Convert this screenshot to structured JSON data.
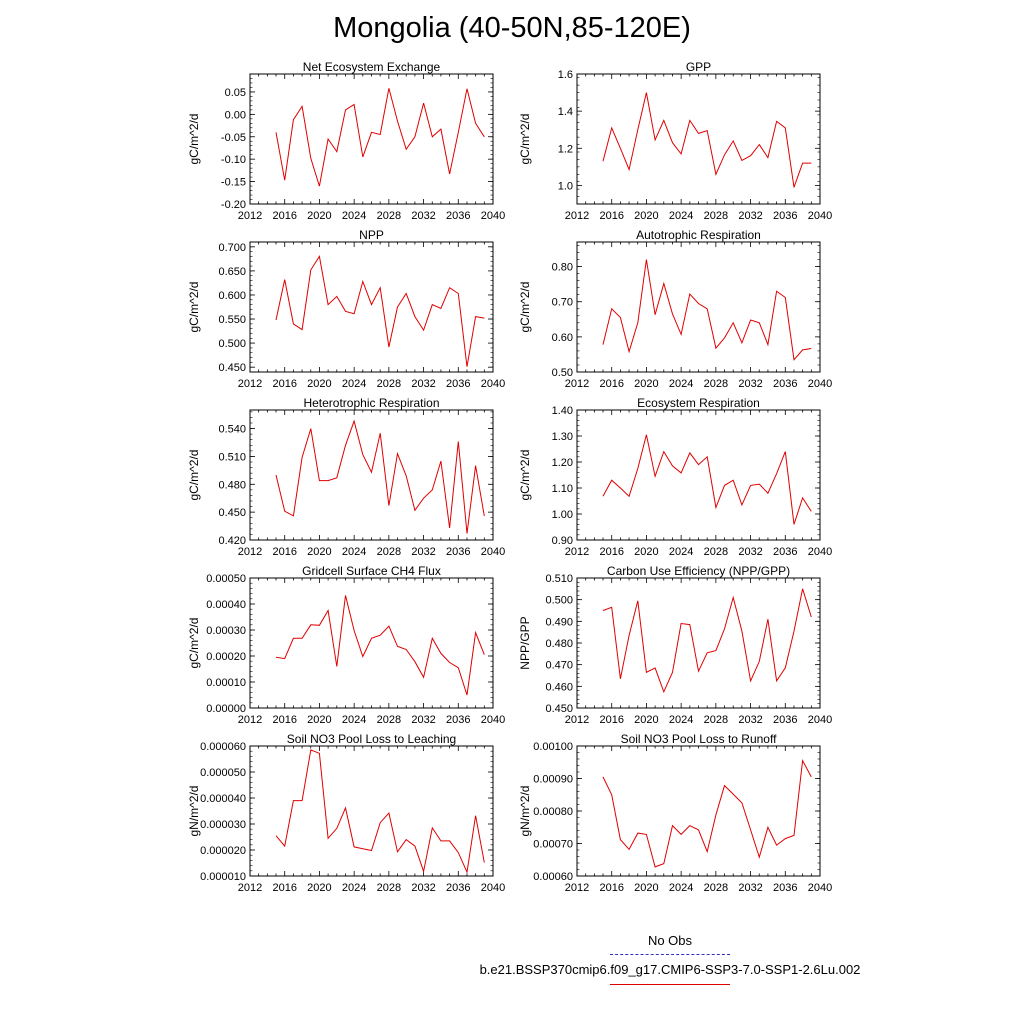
{
  "title": "Mongolia (40-50N,85-120E)",
  "legend": {
    "obs_label": "No Obs",
    "case_label": "b.e21.BSSP370cmip6.f09_g17.CMIP6-SSP3-7.0-SSP1-2.6Lu.002",
    "obs_color": "#3030c8",
    "case_color": "#e00000"
  },
  "chart_data": [
    {
      "type": "line",
      "title": "Net Ecosystem Exchange",
      "ylabel": "gC/m^2/d",
      "xlim": [
        2012,
        2040
      ],
      "xticks": [
        "2012",
        "2016",
        "2020",
        "2024",
        "2028",
        "2032",
        "2036",
        "2040"
      ],
      "ylim": [
        -0.2,
        0.09
      ],
      "yticks": [
        "0.05",
        "0.00",
        "-0.05",
        "-0.10",
        "-0.15",
        "-0.20"
      ],
      "ytick_values": [
        0.05,
        0.0,
        -0.05,
        -0.1,
        -0.15,
        -0.2
      ],
      "series": [
        {
          "x": [
            2015,
            2016,
            2017,
            2018,
            2019,
            2020,
            2021,
            2022,
            2023,
            2024,
            2025,
            2026,
            2027,
            2028,
            2029,
            2030,
            2031,
            2032,
            2033,
            2034,
            2035,
            2036,
            2037,
            2038,
            2039
          ],
          "values": [
            -0.04,
            -0.147,
            -0.012,
            0.018,
            -0.098,
            -0.16,
            -0.055,
            -0.083,
            0.01,
            0.022,
            -0.095,
            -0.04,
            -0.045,
            0.058,
            -0.015,
            -0.078,
            -0.05,
            0.025,
            -0.05,
            -0.033,
            -0.133,
            -0.04,
            0.057,
            -0.02,
            -0.05
          ]
        }
      ]
    },
    {
      "type": "line",
      "title": "GPP",
      "ylabel": "gC/m^2/d",
      "xlim": [
        2012,
        2040
      ],
      "xticks": [
        "2012",
        "2016",
        "2020",
        "2024",
        "2028",
        "2032",
        "2036",
        "2040"
      ],
      "ylim": [
        0.9,
        1.6
      ],
      "yticks": [
        "1.6",
        "1.4",
        "1.2",
        "1.0"
      ],
      "ytick_values": [
        1.6,
        1.4,
        1.2,
        1.0
      ],
      "series": [
        {
          "x": [
            2015,
            2016,
            2017,
            2018,
            2019,
            2020,
            2021,
            2022,
            2023,
            2024,
            2025,
            2026,
            2027,
            2028,
            2029,
            2030,
            2031,
            2032,
            2033,
            2034,
            2035,
            2036,
            2037,
            2038,
            2039
          ],
          "values": [
            1.13,
            1.31,
            1.2,
            1.085,
            1.3,
            1.5,
            1.245,
            1.35,
            1.23,
            1.17,
            1.35,
            1.28,
            1.295,
            1.06,
            1.165,
            1.24,
            1.135,
            1.16,
            1.22,
            1.15,
            1.345,
            1.31,
            0.99,
            1.12,
            1.12
          ]
        }
      ]
    },
    {
      "type": "line",
      "title": "NPP",
      "ylabel": "gC/m^2/d",
      "xlim": [
        2012,
        2040
      ],
      "xticks": [
        "2012",
        "2016",
        "2020",
        "2024",
        "2028",
        "2032",
        "2036",
        "2040"
      ],
      "ylim": [
        0.44,
        0.71
      ],
      "yticks": [
        "0.700",
        "0.650",
        "0.600",
        "0.550",
        "0.500",
        "0.450"
      ],
      "ytick_values": [
        0.7,
        0.65,
        0.6,
        0.55,
        0.5,
        0.45
      ],
      "series": [
        {
          "x": [
            2015,
            2016,
            2017,
            2018,
            2019,
            2020,
            2021,
            2022,
            2023,
            2024,
            2025,
            2026,
            2027,
            2028,
            2029,
            2030,
            2031,
            2032,
            2033,
            2034,
            2035,
            2036,
            2037,
            2038,
            2039
          ],
          "values": [
            0.548,
            0.632,
            0.54,
            0.528,
            0.652,
            0.68,
            0.58,
            0.597,
            0.566,
            0.561,
            0.628,
            0.58,
            0.615,
            0.492,
            0.575,
            0.603,
            0.555,
            0.527,
            0.58,
            0.572,
            0.615,
            0.603,
            0.451,
            0.555,
            0.552
          ]
        }
      ]
    },
    {
      "type": "line",
      "title": "Autotrophic Respiration",
      "ylabel": "gC/m^2/d",
      "xlim": [
        2012,
        2040
      ],
      "xticks": [
        "2012",
        "2016",
        "2020",
        "2024",
        "2028",
        "2032",
        "2036",
        "2040"
      ],
      "ylim": [
        0.5,
        0.87
      ],
      "yticks": [
        "0.80",
        "0.70",
        "0.60",
        "0.50"
      ],
      "ytick_values": [
        0.8,
        0.7,
        0.6,
        0.5
      ],
      "series": [
        {
          "x": [
            2015,
            2016,
            2017,
            2018,
            2019,
            2020,
            2021,
            2022,
            2023,
            2024,
            2025,
            2026,
            2027,
            2028,
            2029,
            2030,
            2031,
            2032,
            2033,
            2034,
            2035,
            2036,
            2037,
            2038,
            2039
          ],
          "values": [
            0.578,
            0.68,
            0.655,
            0.558,
            0.64,
            0.82,
            0.663,
            0.752,
            0.665,
            0.607,
            0.722,
            0.695,
            0.68,
            0.568,
            0.597,
            0.64,
            0.583,
            0.648,
            0.64,
            0.578,
            0.73,
            0.712,
            0.535,
            0.563,
            0.567
          ]
        }
      ]
    },
    {
      "type": "line",
      "title": "Heterotrophic Respiration",
      "ylabel": "gC/m^2/d",
      "xlim": [
        2012,
        2040
      ],
      "xticks": [
        "2012",
        "2016",
        "2020",
        "2024",
        "2028",
        "2032",
        "2036",
        "2040"
      ],
      "ylim": [
        0.42,
        0.56
      ],
      "yticks": [
        "0.540",
        "0.510",
        "0.480",
        "0.450",
        "0.420"
      ],
      "ytick_values": [
        0.54,
        0.51,
        0.48,
        0.45,
        0.42
      ],
      "series": [
        {
          "x": [
            2015,
            2016,
            2017,
            2018,
            2019,
            2020,
            2021,
            2022,
            2023,
            2024,
            2025,
            2026,
            2027,
            2028,
            2029,
            2030,
            2031,
            2032,
            2033,
            2034,
            2035,
            2036,
            2037,
            2038,
            2039
          ],
          "values": [
            0.49,
            0.451,
            0.446,
            0.509,
            0.54,
            0.484,
            0.484,
            0.487,
            0.522,
            0.548,
            0.512,
            0.493,
            0.535,
            0.457,
            0.513,
            0.489,
            0.452,
            0.465,
            0.474,
            0.505,
            0.433,
            0.526,
            0.427,
            0.5,
            0.446
          ]
        }
      ]
    },
    {
      "type": "line",
      "title": "Ecosystem Respiration",
      "ylabel": "gC/m^2/d",
      "xlim": [
        2012,
        2040
      ],
      "xticks": [
        "2012",
        "2016",
        "2020",
        "2024",
        "2028",
        "2032",
        "2036",
        "2040"
      ],
      "ylim": [
        0.9,
        1.4
      ],
      "yticks": [
        "1.40",
        "1.30",
        "1.20",
        "1.10",
        "1.00",
        "0.90"
      ],
      "ytick_values": [
        1.4,
        1.3,
        1.2,
        1.1,
        1.0,
        0.9
      ],
      "series": [
        {
          "x": [
            2015,
            2016,
            2017,
            2018,
            2019,
            2020,
            2021,
            2022,
            2023,
            2024,
            2025,
            2026,
            2027,
            2028,
            2029,
            2030,
            2031,
            2032,
            2033,
            2034,
            2035,
            2036,
            2037,
            2038,
            2039
          ],
          "values": [
            1.068,
            1.13,
            1.1,
            1.068,
            1.175,
            1.305,
            1.145,
            1.24,
            1.185,
            1.158,
            1.235,
            1.19,
            1.22,
            1.025,
            1.11,
            1.13,
            1.035,
            1.11,
            1.115,
            1.08,
            1.155,
            1.24,
            0.96,
            1.062,
            1.01
          ]
        }
      ]
    },
    {
      "type": "line",
      "title": "Gridcell Surface CH4 Flux",
      "ylabel": "gC/m^2/d",
      "xlim": [
        2012,
        2040
      ],
      "xticks": [
        "2012",
        "2016",
        "2020",
        "2024",
        "2028",
        "2032",
        "2036",
        "2040"
      ],
      "ylim": [
        0.0,
        0.0005
      ],
      "yticks": [
        "0.00050",
        "0.00040",
        "0.00030",
        "0.00020",
        "0.00010",
        "0.00000"
      ],
      "ytick_values": [
        0.0005,
        0.0004,
        0.0003,
        0.0002,
        0.0001,
        0.0
      ],
      "series": [
        {
          "x": [
            2015,
            2016,
            2017,
            2018,
            2019,
            2020,
            2021,
            2022,
            2023,
            2024,
            2025,
            2026,
            2027,
            2028,
            2029,
            2030,
            2031,
            2032,
            2033,
            2034,
            2035,
            2036,
            2037,
            2038,
            2039
          ],
          "values": [
            0.000195,
            0.00019,
            0.000268,
            0.000268,
            0.00032,
            0.000318,
            0.000375,
            0.00016,
            0.000433,
            0.000298,
            0.000198,
            0.000268,
            0.00028,
            0.000315,
            0.000237,
            0.000225,
            0.000178,
            0.000118,
            0.000268,
            0.00021,
            0.000175,
            0.000155,
            5e-05,
            0.00029,
            0.000205
          ]
        }
      ]
    },
    {
      "type": "line",
      "title": "Carbon Use Efficiency (NPP/GPP)",
      "ylabel": "NPP/GPP",
      "xlim": [
        2012,
        2040
      ],
      "xticks": [
        "2012",
        "2016",
        "2020",
        "2024",
        "2028",
        "2032",
        "2036",
        "2040"
      ],
      "ylim": [
        0.45,
        0.51
      ],
      "yticks": [
        "0.510",
        "0.500",
        "0.490",
        "0.480",
        "0.470",
        "0.460",
        "0.450"
      ],
      "ytick_values": [
        0.51,
        0.5,
        0.49,
        0.48,
        0.47,
        0.46,
        0.45
      ],
      "series": [
        {
          "x": [
            2015,
            2016,
            2017,
            2018,
            2019,
            2020,
            2021,
            2022,
            2023,
            2024,
            2025,
            2026,
            2027,
            2028,
            2029,
            2030,
            2031,
            2032,
            2033,
            2034,
            2035,
            2036,
            2037,
            2038,
            2039
          ],
          "values": [
            0.495,
            0.4965,
            0.4635,
            0.4835,
            0.4995,
            0.4665,
            0.4685,
            0.4575,
            0.4665,
            0.489,
            0.4885,
            0.467,
            0.4755,
            0.4765,
            0.4865,
            0.501,
            0.4855,
            0.4625,
            0.4715,
            0.491,
            0.4625,
            0.4685,
            0.4855,
            0.505,
            0.492
          ]
        }
      ]
    },
    {
      "type": "line",
      "title": "Soil NO3 Pool Loss to Leaching",
      "ylabel": "gN/m^2/d",
      "xlim": [
        2012,
        2040
      ],
      "xticks": [
        "2012",
        "2016",
        "2020",
        "2024",
        "2028",
        "2032",
        "2036",
        "2040"
      ],
      "ylim": [
        1e-05,
        6e-05
      ],
      "yticks": [
        "0.000060",
        "0.000050",
        "0.000040",
        "0.000030",
        "0.000020",
        "0.000010"
      ],
      "ytick_values": [
        6e-05,
        5e-05,
        4e-05,
        3e-05,
        2e-05,
        1e-05
      ],
      "series": [
        {
          "x": [
            2015,
            2016,
            2017,
            2018,
            2019,
            2020,
            2021,
            2022,
            2023,
            2024,
            2025,
            2026,
            2027,
            2028,
            2029,
            2030,
            2031,
            2032,
            2033,
            2034,
            2035,
            2036,
            2037,
            2038,
            2039
          ],
          "values": [
            2.55e-05,
            2.15e-05,
            3.9e-05,
            3.9e-05,
            5.85e-05,
            5.72e-05,
            2.45e-05,
            2.83e-05,
            3.62e-05,
            2.12e-05,
            2.05e-05,
            1.98e-05,
            3.05e-05,
            3.42e-05,
            1.93e-05,
            2.4e-05,
            2.15e-05,
            1.18e-05,
            2.85e-05,
            2.35e-05,
            2.35e-05,
            1.9e-05,
            1.15e-05,
            3.32e-05,
            1.52e-05
          ]
        }
      ]
    },
    {
      "type": "line",
      "title": "Soil NO3 Pool Loss to Runoff",
      "ylabel": "gN/m^2/d",
      "xlim": [
        2012,
        2040
      ],
      "xticks": [
        "2012",
        "2016",
        "2020",
        "2024",
        "2028",
        "2032",
        "2036",
        "2040"
      ],
      "ylim": [
        0.0006,
        0.001
      ],
      "yticks": [
        "0.00100",
        "0.00090",
        "0.00080",
        "0.00070",
        "0.00060"
      ],
      "ytick_values": [
        0.001,
        0.0009,
        0.0008,
        0.0007,
        0.0006
      ],
      "series": [
        {
          "x": [
            2015,
            2016,
            2017,
            2018,
            2019,
            2020,
            2021,
            2022,
            2023,
            2024,
            2025,
            2026,
            2027,
            2028,
            2029,
            2030,
            2031,
            2032,
            2033,
            2034,
            2035,
            2036,
            2037,
            2038,
            2039
          ],
          "values": [
            0.000905,
            0.00085,
            0.000712,
            0.000682,
            0.000732,
            0.000728,
            0.000628,
            0.000638,
            0.000755,
            0.000728,
            0.000755,
            0.000742,
            0.000675,
            0.000788,
            0.000878,
            0.000852,
            0.000825,
            0.000742,
            0.000658,
            0.00075,
            0.000695,
            0.000715,
            0.000725,
            0.000955,
            0.000905
          ]
        }
      ]
    }
  ]
}
